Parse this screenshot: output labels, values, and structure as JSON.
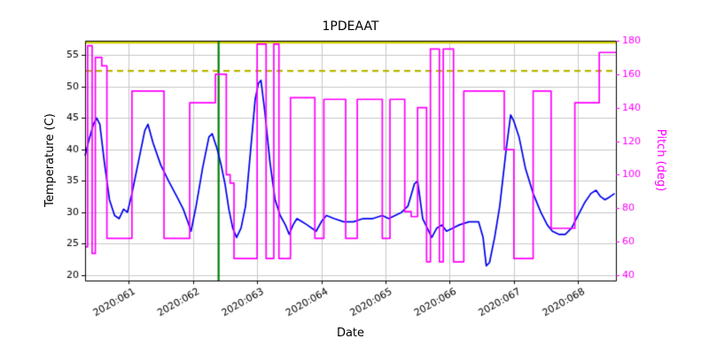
{
  "title": "1PDEAAT",
  "chart_data": {
    "type": "line",
    "title": "1PDEAAT",
    "xlabel": "Date",
    "ylabel_left": "Temperature (C)",
    "ylabel_right": "Pitch (deg)",
    "xlim": [
      60.32,
      68.59
    ],
    "ylim_left": [
      19.15,
      57.3
    ],
    "ylim_right": [
      36.83,
      180
    ],
    "x_ticks": [
      61,
      62,
      63,
      64,
      65,
      66,
      67,
      68
    ],
    "x_tick_labels": [
      "2020:061",
      "2020:062",
      "2020:063",
      "2020:064",
      "2020:065",
      "2020:066",
      "2020:067",
      "2020:068"
    ],
    "yticks_left": [
      20,
      25,
      30,
      35,
      40,
      45,
      50,
      55
    ],
    "yticks_right": [
      40,
      60,
      80,
      100,
      120,
      140,
      160,
      180
    ],
    "grid": true,
    "legend": false,
    "colors": {
      "temperature": "#0000ee",
      "pitch": "#ff00ff",
      "limit_solid": "#cccc00",
      "limit_dashed": "#b8b800",
      "event_line": "#008000",
      "grid": "#c8c8c8",
      "axis_text": "#000000",
      "axis_text_right": "#ff00ff"
    },
    "reference_lines": [
      {
        "name": "yellow-limit",
        "orientation": "horizontal",
        "axis": "left",
        "value": 57.0,
        "color": "#cccc00",
        "style": "solid"
      },
      {
        "name": "planning-limit",
        "orientation": "horizontal",
        "axis": "left",
        "value": 52.5,
        "color": "#b8b800",
        "style": "dashed"
      },
      {
        "name": "event-marker",
        "orientation": "vertical",
        "axis": "x",
        "value": 62.4,
        "color": "#008000",
        "style": "solid"
      }
    ],
    "series": [
      {
        "name": "temperature",
        "axis": "left",
        "color": "#0000ee",
        "points": [
          [
            60.32,
            39
          ],
          [
            60.38,
            41.5
          ],
          [
            60.45,
            44
          ],
          [
            60.5,
            45
          ],
          [
            60.55,
            44
          ],
          [
            60.62,
            38
          ],
          [
            60.7,
            32
          ],
          [
            60.78,
            29.5
          ],
          [
            60.85,
            29
          ],
          [
            60.92,
            30.5
          ],
          [
            60.98,
            30
          ],
          [
            61.05,
            33
          ],
          [
            61.15,
            38
          ],
          [
            61.25,
            43
          ],
          [
            61.3,
            44
          ],
          [
            61.38,
            41
          ],
          [
            61.5,
            37.5
          ],
          [
            61.62,
            35
          ],
          [
            61.75,
            32.5
          ],
          [
            61.85,
            30.5
          ],
          [
            61.92,
            28.5
          ],
          [
            61.97,
            27
          ],
          [
            62.05,
            31
          ],
          [
            62.15,
            37
          ],
          [
            62.25,
            42
          ],
          [
            62.3,
            42.5
          ],
          [
            62.38,
            40
          ],
          [
            62.44,
            37.5
          ],
          [
            62.5,
            34.5
          ],
          [
            62.56,
            30.5
          ],
          [
            62.62,
            27.5
          ],
          [
            62.68,
            26
          ],
          [
            62.75,
            27.5
          ],
          [
            62.82,
            31
          ],
          [
            62.9,
            40
          ],
          [
            62.97,
            48
          ],
          [
            63.02,
            50.5
          ],
          [
            63.06,
            51
          ],
          [
            63.12,
            46
          ],
          [
            63.2,
            38
          ],
          [
            63.28,
            32
          ],
          [
            63.36,
            29.5
          ],
          [
            63.44,
            28
          ],
          [
            63.5,
            26.5
          ],
          [
            63.56,
            28
          ],
          [
            63.62,
            29
          ],
          [
            63.7,
            28.5
          ],
          [
            63.78,
            28
          ],
          [
            63.85,
            27.5
          ],
          [
            63.92,
            27
          ],
          [
            64,
            28.5
          ],
          [
            64.08,
            29.5
          ],
          [
            64.2,
            29
          ],
          [
            64.35,
            28.5
          ],
          [
            64.5,
            28.5
          ],
          [
            64.65,
            29
          ],
          [
            64.8,
            29
          ],
          [
            64.95,
            29.5
          ],
          [
            65.05,
            29
          ],
          [
            65.15,
            29.5
          ],
          [
            65.25,
            30
          ],
          [
            65.35,
            31
          ],
          [
            65.45,
            34.5
          ],
          [
            65.5,
            35
          ],
          [
            65.58,
            29
          ],
          [
            65.65,
            27.5
          ],
          [
            65.72,
            26
          ],
          [
            65.8,
            27.5
          ],
          [
            65.88,
            28
          ],
          [
            65.95,
            27
          ],
          [
            66.05,
            27.5
          ],
          [
            66.15,
            28
          ],
          [
            66.3,
            28.5
          ],
          [
            66.45,
            28.5
          ],
          [
            66.52,
            26
          ],
          [
            66.57,
            21.5
          ],
          [
            66.62,
            22
          ],
          [
            66.7,
            26
          ],
          [
            66.78,
            31
          ],
          [
            66.88,
            40
          ],
          [
            66.95,
            45.5
          ],
          [
            67,
            44.5
          ],
          [
            67.08,
            42
          ],
          [
            67.18,
            37
          ],
          [
            67.3,
            33
          ],
          [
            67.42,
            30
          ],
          [
            67.52,
            28
          ],
          [
            67.6,
            27
          ],
          [
            67.7,
            26.5
          ],
          [
            67.8,
            26.5
          ],
          [
            67.9,
            27.5
          ],
          [
            68,
            29.5
          ],
          [
            68.1,
            31.5
          ],
          [
            68.2,
            33
          ],
          [
            68.28,
            33.5
          ],
          [
            68.35,
            32.5
          ],
          [
            68.42,
            32
          ],
          [
            68.5,
            32.5
          ],
          [
            68.57,
            33
          ]
        ]
      },
      {
        "name": "pitch",
        "axis": "right",
        "color": "#ff00ff",
        "points": [
          [
            60.32,
            57
          ],
          [
            60.36,
            57
          ],
          [
            60.36,
            177
          ],
          [
            60.43,
            177
          ],
          [
            60.43,
            53
          ],
          [
            60.48,
            53
          ],
          [
            60.48,
            170
          ],
          [
            60.58,
            170
          ],
          [
            60.58,
            165
          ],
          [
            60.66,
            165
          ],
          [
            60.66,
            62
          ],
          [
            61.05,
            62
          ],
          [
            61.05,
            150
          ],
          [
            61.55,
            150
          ],
          [
            61.55,
            62
          ],
          [
            61.95,
            62
          ],
          [
            61.95,
            143
          ],
          [
            62.35,
            143
          ],
          [
            62.35,
            160
          ],
          [
            62.52,
            160
          ],
          [
            62.52,
            100
          ],
          [
            62.58,
            100
          ],
          [
            62.58,
            95
          ],
          [
            62.64,
            95
          ],
          [
            62.64,
            50
          ],
          [
            63,
            50
          ],
          [
            63,
            178
          ],
          [
            63.14,
            178
          ],
          [
            63.14,
            50
          ],
          [
            63.26,
            50
          ],
          [
            63.26,
            178
          ],
          [
            63.34,
            178
          ],
          [
            63.34,
            50
          ],
          [
            63.52,
            50
          ],
          [
            63.52,
            146
          ],
          [
            63.9,
            146
          ],
          [
            63.9,
            62
          ],
          [
            64.04,
            62
          ],
          [
            64.04,
            145
          ],
          [
            64.38,
            145
          ],
          [
            64.38,
            62
          ],
          [
            64.56,
            62
          ],
          [
            64.56,
            145
          ],
          [
            64.95,
            145
          ],
          [
            64.95,
            62
          ],
          [
            65.07,
            62
          ],
          [
            65.07,
            145
          ],
          [
            65.3,
            145
          ],
          [
            65.3,
            78
          ],
          [
            65.4,
            78
          ],
          [
            65.4,
            75
          ],
          [
            65.5,
            75
          ],
          [
            65.5,
            140
          ],
          [
            65.64,
            140
          ],
          [
            65.64,
            48
          ],
          [
            65.7,
            48
          ],
          [
            65.7,
            175
          ],
          [
            65.84,
            175
          ],
          [
            65.84,
            48
          ],
          [
            65.9,
            48
          ],
          [
            65.9,
            175
          ],
          [
            66.06,
            175
          ],
          [
            66.06,
            48
          ],
          [
            66.22,
            48
          ],
          [
            66.22,
            150
          ],
          [
            66.85,
            150
          ],
          [
            66.85,
            115
          ],
          [
            67,
            115
          ],
          [
            67,
            50
          ],
          [
            67.3,
            50
          ],
          [
            67.3,
            150
          ],
          [
            67.58,
            150
          ],
          [
            67.58,
            68
          ],
          [
            67.95,
            68
          ],
          [
            67.95,
            143
          ],
          [
            68.33,
            143
          ],
          [
            68.33,
            173
          ],
          [
            68.59,
            173
          ]
        ]
      }
    ]
  }
}
